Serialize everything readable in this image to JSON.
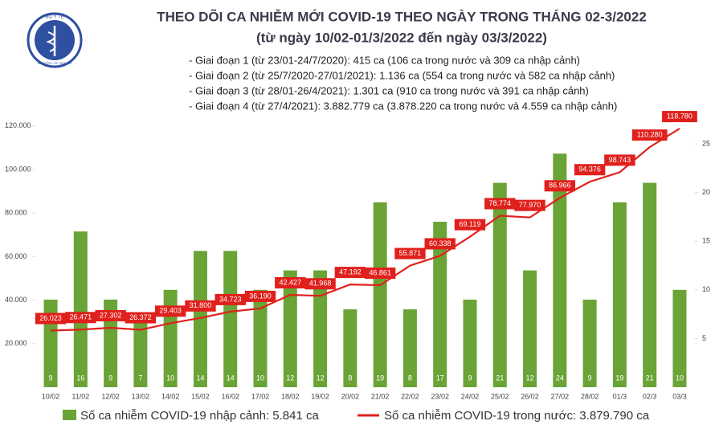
{
  "chart_data": {
    "type": "combo",
    "title": "THEO DÕI CA NHIỄM MỚI COVID-19 THEO NGÀY TRONG THÁNG 02-3/2022",
    "subtitle": "(từ ngày 10/02-01/3/2022 đến ngày 03/3/2022)",
    "logo_text": "BỘ Y TẾ",
    "logo_subtext": "MINISTRY OF HEALTH",
    "annotations": [
      "- Giai đoạn 1 (từ 23/01-24/7/2020): 415 ca (106 ca trong nước và 309 ca nhập cảnh)",
      "- Giai đoạn 2 (từ 25/7/2020-27/01/2021): 1.136 ca (554 ca trong nước và 582 ca nhập cảnh)",
      "- Giai đoạn 3 (từ 28/01-26/4/2021): 1.301 ca (910 ca trong nước và 391 ca nhập cảnh)",
      "- Giai đoạn 4 (từ 27/4/2021): 3.882.779 ca (3.878.220 ca trong nước và 4.559 ca nhập cảnh)"
    ],
    "categories": [
      "10/02",
      "11/02",
      "12/02",
      "13/02",
      "14/02",
      "15/02",
      "16/02",
      "17/02",
      "18/02",
      "19/02",
      "20/02",
      "21/02",
      "22/02",
      "23/02",
      "24/02",
      "25/02",
      "26/02",
      "27/02",
      "28/02",
      "01/3",
      "02/3",
      "03/3"
    ],
    "series": [
      {
        "name": "Số ca nhiễm COVID-19 nhập cảnh: 5.841 ca",
        "type": "bar",
        "axis": "y2",
        "color": "#6aa336",
        "values": [
          9,
          16,
          9,
          7,
          10,
          14,
          14,
          10,
          12,
          12,
          8,
          19,
          8,
          17,
          9,
          21,
          12,
          24,
          9,
          19,
          21,
          10
        ]
      },
      {
        "name": "Số ca nhiễm COVID-19 trong nước: 3.879.790 ca",
        "type": "line",
        "color": "#e0201c",
        "values": [
          26023,
          26471,
          27302,
          26372,
          29403,
          31800,
          34723,
          36190,
          42427,
          41968,
          47192,
          46861,
          55871,
          60338,
          69119,
          78774,
          77970,
          86966,
          94376,
          98743,
          110280,
          118780
        ],
        "value_labels": [
          "26.023",
          "26.471",
          "27.302",
          "26.372",
          "29.403",
          "31.800",
          "34.723",
          "36.190",
          "42.427",
          "41.968",
          "47.192",
          "46.861",
          "55.871",
          "60.338",
          "69.119",
          "78.774",
          "77.970",
          "86.966",
          "94.376",
          "98.743",
          "110.280",
          "118.780"
        ]
      }
    ],
    "ylim": [
      0,
      122500
    ],
    "yticks": [
      {
        "value": 20000,
        "label": "20.000"
      },
      {
        "value": 40000,
        "label": "40.000"
      },
      {
        "value": 60000,
        "label": "60.000"
      },
      {
        "value": 80000,
        "label": "80.000"
      },
      {
        "value": 100000,
        "label": "100.000"
      },
      {
        "value": 120000,
        "label": "120.000"
      }
    ],
    "y2lim": [
      0,
      27.4
    ],
    "y2ticks": [
      5,
      10,
      15,
      20,
      25
    ],
    "grid": false
  }
}
